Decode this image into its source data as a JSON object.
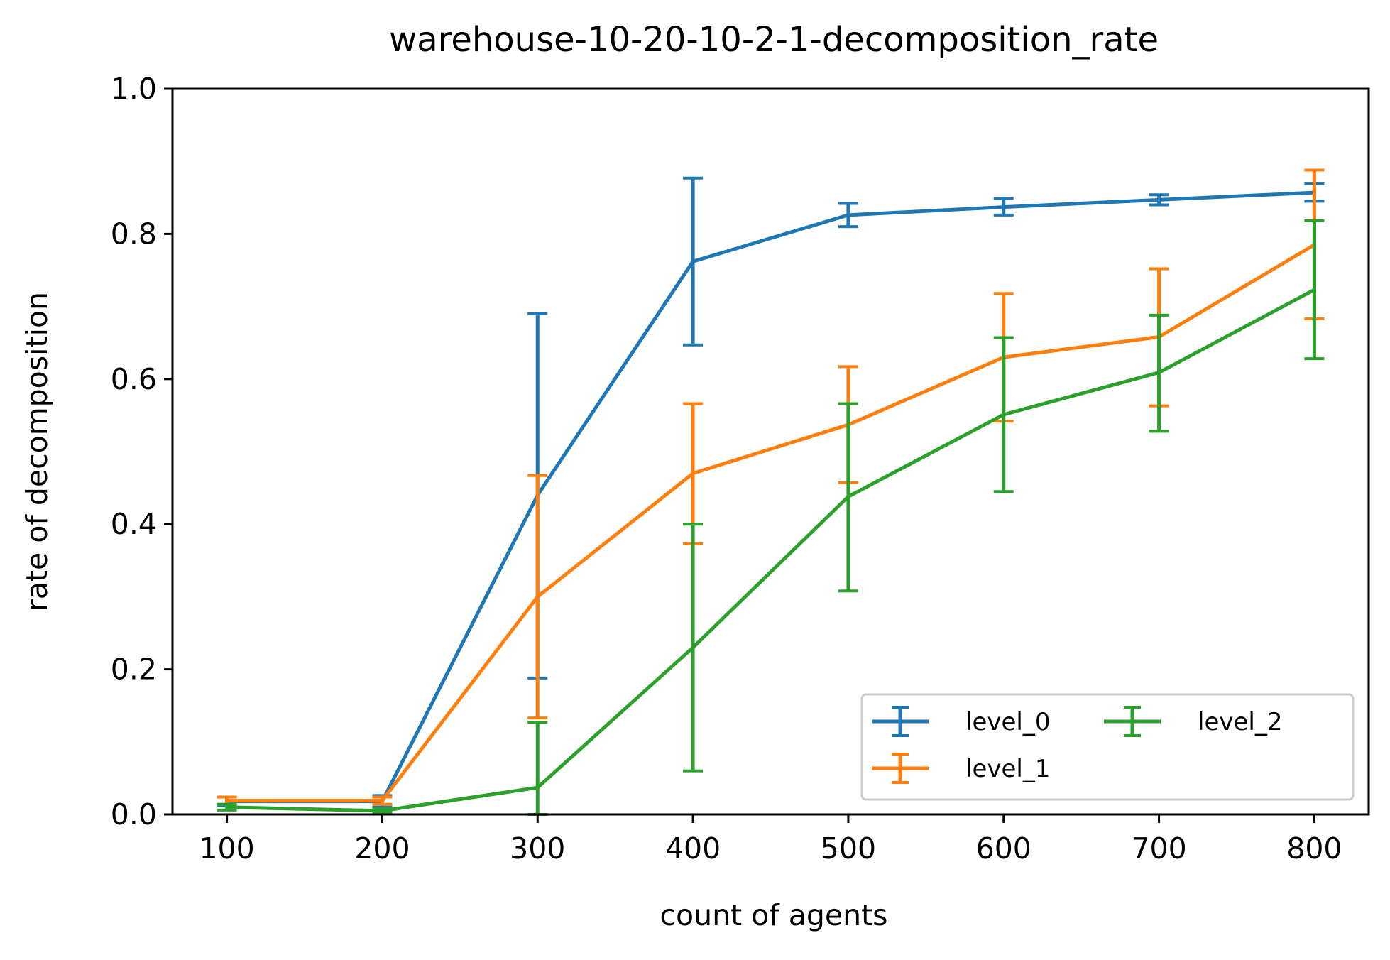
{
  "chart_data": {
    "type": "line",
    "title": "warehouse-10-20-10-2-1-decomposition_rate",
    "xlabel": "count of agents",
    "ylabel": "rate of decomposition",
    "x": [
      100,
      200,
      300,
      400,
      500,
      600,
      700,
      800
    ],
    "xlim": [
      65,
      835
    ],
    "ylim": [
      0,
      1.0
    ],
    "xticks": [
      "100",
      "200",
      "300",
      "400",
      "500",
      "600",
      "700",
      "800"
    ],
    "yticks": [
      "0.0",
      "0.2",
      "0.4",
      "0.6",
      "0.8",
      "1.0"
    ],
    "grid": false,
    "legend_position": "lower-right",
    "legend_columns": 2,
    "error_bars": true,
    "series": [
      {
        "name": "level_0",
        "color": "#1f77b4",
        "values": [
          0.018,
          0.018,
          0.44,
          0.762,
          0.826,
          0.837,
          0.847,
          0.857
        ],
        "err_low": [
          0.012,
          0.01,
          0.188,
          0.647,
          0.81,
          0.826,
          0.84,
          0.845
        ],
        "err_high": [
          0.024,
          0.026,
          0.69,
          0.877,
          0.842,
          0.849,
          0.854,
          0.869
        ]
      },
      {
        "name": "level_1",
        "color": "#ff7f0e",
        "values": [
          0.019,
          0.019,
          0.3,
          0.47,
          0.537,
          0.63,
          0.658,
          0.785
        ],
        "err_low": [
          0.014,
          0.014,
          0.133,
          0.373,
          0.457,
          0.542,
          0.563,
          0.683
        ],
        "err_high": [
          0.024,
          0.024,
          0.467,
          0.566,
          0.617,
          0.718,
          0.752,
          0.888
        ]
      },
      {
        "name": "level_2",
        "color": "#2ca02c",
        "values": [
          0.01,
          0.005,
          0.037,
          0.23,
          0.438,
          0.551,
          0.609,
          0.723
        ],
        "err_low": [
          0.006,
          0.003,
          0.0,
          0.06,
          0.308,
          0.445,
          0.528,
          0.628
        ],
        "err_high": [
          0.014,
          0.008,
          0.127,
          0.4,
          0.566,
          0.657,
          0.688,
          0.818
        ]
      }
    ]
  }
}
